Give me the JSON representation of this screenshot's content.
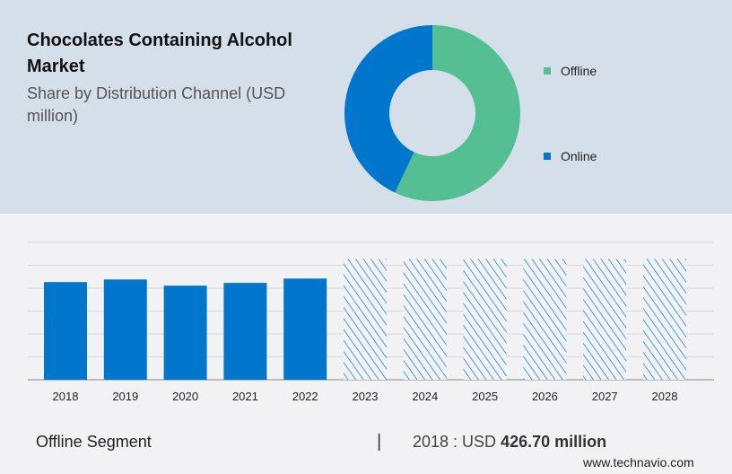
{
  "header": {
    "title": "Chocolates Containing Alcohol Market",
    "subtitle": "Share by Distribution Channel (USD million)"
  },
  "chart_data": [
    {
      "type": "pie",
      "variant": "donut",
      "categories": [
        "Offline",
        "Online"
      ],
      "values": [
        57,
        43
      ],
      "colors": [
        "#54bf92",
        "#0077cc"
      ],
      "legend_placement": "right"
    },
    {
      "type": "bar",
      "categories": [
        "2018",
        "2019",
        "2020",
        "2021",
        "2022",
        "2023",
        "2024",
        "2025",
        "2026",
        "2027",
        "2028"
      ],
      "values": [
        426.7,
        438,
        411,
        423,
        442,
        528,
        528,
        528,
        528,
        528,
        528
      ],
      "forecast_from": "2023",
      "forecast_style": "hatched",
      "color": "#0077cc",
      "ylim": [
        0,
        600
      ],
      "grid": true,
      "y_tick_labels_shown": false
    }
  ],
  "footer": {
    "segment": "Offline Segment",
    "separator": "|",
    "year_value_prefix": "2018 : USD",
    "value": "426.70 million",
    "website": "www.technavio.com"
  }
}
